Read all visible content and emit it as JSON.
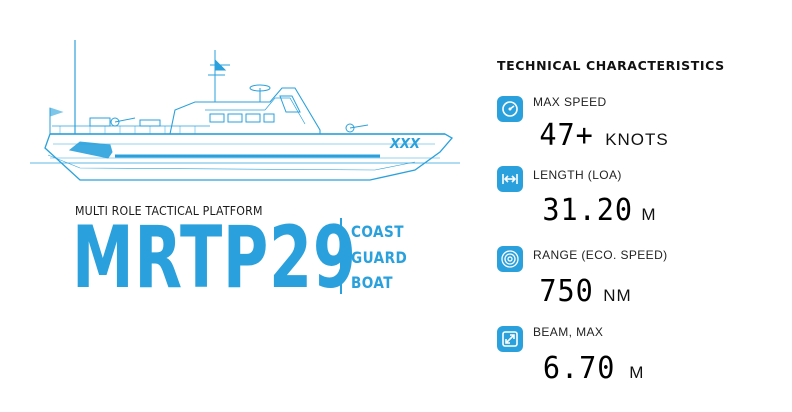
{
  "ship": {
    "hull_marking": "XXX"
  },
  "platform": {
    "subtitle": "MULTI ROLE TACTICAL PLATFORM",
    "model": "MRTP29",
    "type_lines": [
      "COAST",
      "GUARD",
      "BOAT"
    ]
  },
  "specs": {
    "title": "TECHNICAL CHARACTERISTICS",
    "items": [
      {
        "icon": "speedometer-icon",
        "label": "MAX SPEED",
        "value": "47+",
        "unit": "KNOTS"
      },
      {
        "icon": "length-arrows-icon",
        "label": "LENGTH (LOA)",
        "value": "31.20",
        "unit": "M"
      },
      {
        "icon": "range-target-icon",
        "label": "RANGE (ECO. SPEED)",
        "value": "750",
        "unit": "NM"
      },
      {
        "icon": "beam-diagonal-icon",
        "label": "BEAM, MAX",
        "value": "6.70",
        "unit": "M"
      }
    ]
  },
  "colors": {
    "accent": "#2aa1dc",
    "text": "#111111",
    "background": "#ffffff"
  }
}
